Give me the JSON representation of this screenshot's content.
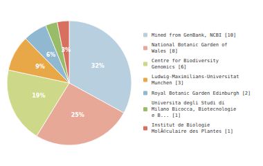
{
  "chart_data": {
    "type": "pie",
    "categories": [
      "Mined from GenBank, NCBI [10]",
      "National Botanic Garden of\nWales [8]",
      "Centre for Biodiversity\nGenomics [6]",
      "Ludwig-Maximilians-Universitat\nMunchen [3]",
      "Royal Botanic Garden Edinburgh [2]",
      "Universita degli Studi di\nMilano Bicocca, Biotecnologie\ne B... [1]",
      "Institut de Biologie\nMolÃ©culaire des Plantes [1]"
    ],
    "values": [
      32,
      25,
      19,
      9,
      6,
      3,
      3
    ],
    "value_labels": [
      "32%",
      "25%",
      "19%",
      "9%",
      "6%",
      "3%",
      "3%"
    ],
    "colors": [
      "#b8cfe0",
      "#e8a898",
      "#cdd888",
      "#e8a848",
      "#90b8d0",
      "#98bc68",
      "#d87060"
    ],
    "data_labels": true,
    "legend": "right"
  }
}
